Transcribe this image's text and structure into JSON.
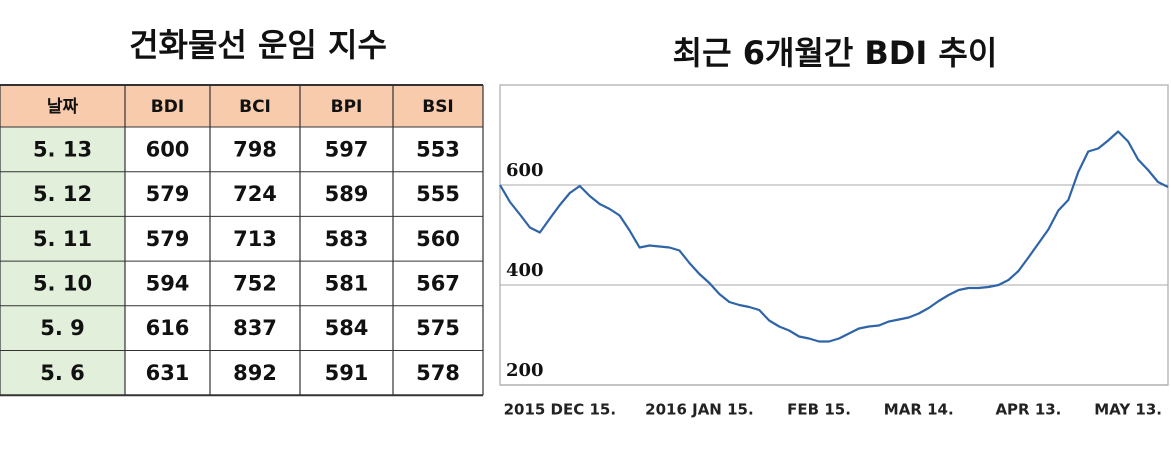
{
  "table": {
    "title": "건화물선 운임 지수",
    "header": [
      "날짜",
      "BDI",
      "BCI",
      "BPI",
      "BSI"
    ],
    "rows": [
      [
        "5. 13",
        "600",
        "798",
        "597",
        "553"
      ],
      [
        "5. 12",
        "579",
        "724",
        "589",
        "555"
      ],
      [
        "5. 11",
        "579",
        "713",
        "583",
        "560"
      ],
      [
        "5. 10",
        "594",
        "752",
        "581",
        "567"
      ],
      [
        "5. 9",
        "616",
        "837",
        "584",
        "575"
      ],
      [
        "5. 6",
        "631",
        "892",
        "591",
        "578"
      ]
    ]
  },
  "chart_data": {
    "type": "line",
    "title": "최근 6개월간 BDI 추이",
    "color": "#2f64a6",
    "values": [
      600,
      566,
      541,
      515,
      505,
      533,
      560,
      584,
      598,
      578,
      562,
      552,
      539,
      509,
      475,
      479,
      477,
      475,
      469,
      444,
      422,
      404,
      382,
      366,
      360,
      356,
      350,
      329,
      317,
      309,
      297,
      293,
      287,
      287,
      293,
      303,
      313,
      317,
      319,
      327,
      331,
      335,
      343,
      354,
      368,
      380,
      390,
      394,
      394,
      396,
      400,
      410,
      428,
      455,
      483,
      511,
      549,
      570,
      626,
      667,
      673,
      689,
      707,
      687,
      651,
      630,
      606,
      596
    ],
    "ylim": [
      200,
      800
    ],
    "yticks": [
      200,
      400,
      600
    ],
    "grid": true,
    "xlim": [
      0,
      67
    ],
    "xticks": [
      {
        "value": 6,
        "label": "2015 DEC 15."
      },
      {
        "value": 20,
        "label": "2016 JAN 15."
      },
      {
        "value": 32,
        "label": "FEB 15."
      },
      {
        "value": 42,
        "label": "MAR 14."
      },
      {
        "value": 53,
        "label": "APR 13."
      },
      {
        "value": 63,
        "label": "MAY 13."
      }
    ]
  }
}
